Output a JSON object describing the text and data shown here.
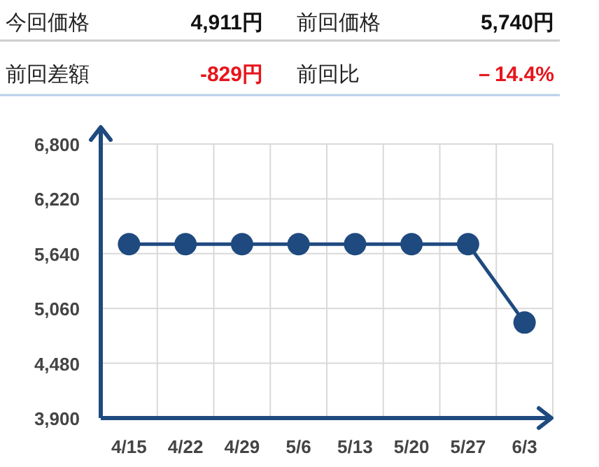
{
  "chart_data": {
    "type": "line",
    "annotations": [
      "今回価格",
      "4,911円",
      "前回価格",
      "5,740円",
      "前回差額",
      "-829円",
      "前回比",
      "－14.4%"
    ],
    "categories": [
      "4/15",
      "4/22",
      "4/29",
      "5/6",
      "5/13",
      "5/20",
      "5/27",
      "6/3"
    ],
    "series": [
      {
        "color": "#1f4a7f",
        "values": [
          5740,
          5740,
          5740,
          5740,
          5740,
          5740,
          5740,
          4911
        ]
      }
    ],
    "ylim": [
      3900,
      6800
    ],
    "yticks": [
      {
        "value": 3900,
        "label": "3,900"
      },
      {
        "value": 4480,
        "label": "4,480"
      },
      {
        "value": 5060,
        "label": "5,060"
      },
      {
        "value": 5640,
        "label": "5,640"
      },
      {
        "value": 6220,
        "label": "6,220"
      },
      {
        "value": 6800,
        "label": "6,800"
      }
    ],
    "grid": true,
    "marker": "circle",
    "line_style": "solid"
  }
}
